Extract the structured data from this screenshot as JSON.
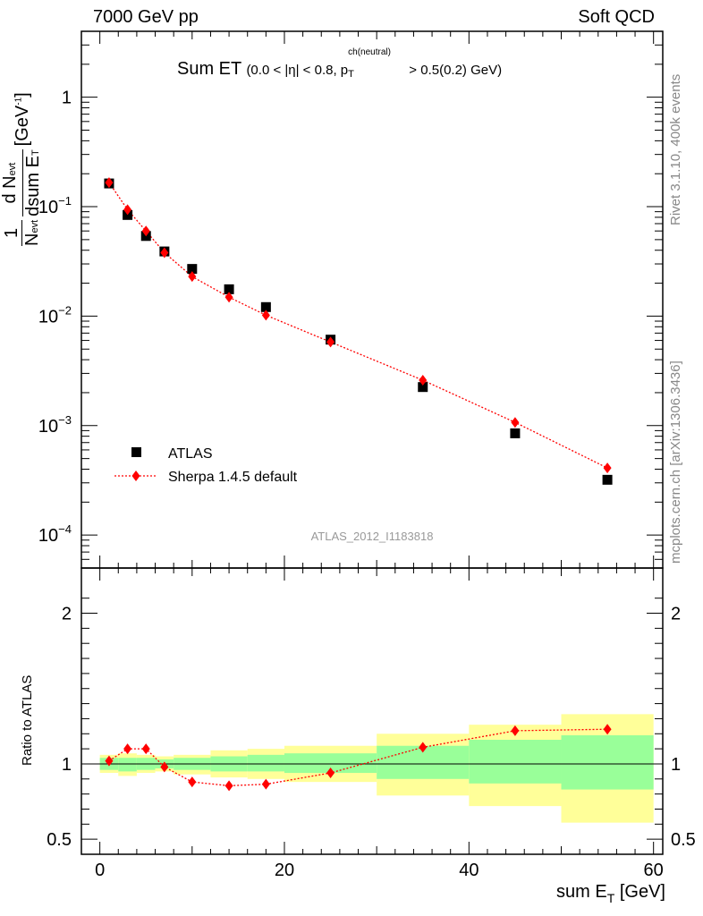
{
  "header": {
    "left": "7000 GeV pp",
    "right": "Soft QCD"
  },
  "side_labels": {
    "rivet": "Rivet 3.1.10,  400k events",
    "mcplots": "mcplots.cern.ch [arXiv:1306.3436]"
  },
  "chart_data": [
    {
      "type": "scatter",
      "title": "Sum ET",
      "title_cuts": {
        "prefix": "(0.0 < |η| < 0.8, p",
        "sup": "ch(neutral)",
        "sub": "T",
        "suffix": " > 0.5(0.2) GeV)"
      },
      "ylabel": "1/N_evt dN_evt/dsum E_T [GeV^-1]",
      "ylabel_parts": {
        "one": "1",
        "n_evt_num": "d N",
        "evt": "evt",
        "n_evt_den": "N",
        "dsum": "dsum E",
        "t": "T",
        "unit": "[GeV",
        "unit_exp": "-1",
        "unit_close": "]"
      },
      "yscale": "log",
      "ylim": [
        5e-05,
        4
      ],
      "xlim": [
        -2,
        61
      ],
      "y_tick_labels": [
        {
          "v": 1,
          "base": "1",
          "exp": ""
        },
        {
          "v": 0.1,
          "base": "10",
          "exp": "−1"
        },
        {
          "v": 0.01,
          "base": "10",
          "exp": "−2"
        },
        {
          "v": 0.001,
          "base": "10",
          "exp": "−3"
        },
        {
          "v": 0.0001,
          "base": "10",
          "exp": "−4"
        }
      ],
      "legend_position": "bottom-left",
      "watermark": "ATLAS_2012_I1183818",
      "series": [
        {
          "name": "ATLAS",
          "marker": "square",
          "color": "#000000",
          "x": [
            1,
            3,
            5,
            7,
            10,
            14,
            18,
            25,
            35,
            45,
            55
          ],
          "y": [
            0.163,
            0.084,
            0.054,
            0.039,
            0.027,
            0.0176,
            0.0121,
            0.0061,
            0.00225,
            0.00085,
            0.00032
          ]
        },
        {
          "name": "Sherpa 1.4.5 default",
          "marker": "diamond",
          "line": "dotted",
          "color": "#ff0000",
          "x": [
            1,
            3,
            5,
            7,
            10,
            14,
            18,
            25,
            35,
            45,
            55
          ],
          "y": [
            0.166,
            0.094,
            0.06,
            0.038,
            0.023,
            0.0149,
            0.0102,
            0.0058,
            0.0026,
            0.00107,
            0.00041
          ]
        }
      ]
    },
    {
      "type": "line",
      "ylabel": "Ratio to ATLAS",
      "xlabel_parts": {
        "main": "sum E",
        "sub": "T",
        "unit": " [GeV]"
      },
      "xlim": [
        -2,
        61
      ],
      "ylim": [
        0.4,
        2.3
      ],
      "x_ticks": [
        0,
        20,
        40,
        60
      ],
      "y_tick_labels": [
        {
          "v": 2,
          "label": "2"
        },
        {
          "v": 1,
          "label": "1"
        },
        {
          "v": 0.5,
          "label": "0.5"
        }
      ],
      "reference_line": 1,
      "bands": [
        {
          "x0": 0,
          "x1": 2,
          "stat_lo": 0.96,
          "stat_hi": 1.04,
          "tot_lo": 0.94,
          "tot_hi": 1.06
        },
        {
          "x0": 2,
          "x1": 4,
          "stat_lo": 0.95,
          "stat_hi": 1.04,
          "tot_lo": 0.92,
          "tot_hi": 1.07
        },
        {
          "x0": 4,
          "x1": 6,
          "stat_lo": 0.96,
          "stat_hi": 1.04,
          "tot_lo": 0.94,
          "tot_hi": 1.06
        },
        {
          "x0": 6,
          "x1": 8,
          "stat_lo": 0.97,
          "stat_hi": 1.03,
          "tot_lo": 0.95,
          "tot_hi": 1.05
        },
        {
          "x0": 8,
          "x1": 12,
          "stat_lo": 0.96,
          "stat_hi": 1.04,
          "tot_lo": 0.93,
          "tot_hi": 1.06
        },
        {
          "x0": 12,
          "x1": 16,
          "stat_lo": 0.95,
          "stat_hi": 1.05,
          "tot_lo": 0.91,
          "tot_hi": 1.09
        },
        {
          "x0": 16,
          "x1": 20,
          "stat_lo": 0.95,
          "stat_hi": 1.06,
          "tot_lo": 0.9,
          "tot_hi": 1.1
        },
        {
          "x0": 20,
          "x1": 30,
          "stat_lo": 0.94,
          "stat_hi": 1.07,
          "tot_lo": 0.88,
          "tot_hi": 1.12
        },
        {
          "x0": 30,
          "x1": 40,
          "stat_lo": 0.9,
          "stat_hi": 1.12,
          "tot_lo": 0.79,
          "tot_hi": 1.2
        },
        {
          "x0": 40,
          "x1": 50,
          "stat_lo": 0.87,
          "stat_hi": 1.16,
          "tot_lo": 0.72,
          "tot_hi": 1.26
        },
        {
          "x0": 50,
          "x1": 60,
          "stat_lo": 0.83,
          "stat_hi": 1.19,
          "tot_lo": 0.61,
          "tot_hi": 1.33
        }
      ],
      "band_colors": {
        "stat": "#99ff99",
        "total": "#ffff99"
      },
      "series": [
        {
          "name": "Sherpa 1.4.5 default",
          "color": "#ff0000",
          "x": [
            1,
            3,
            5,
            7,
            10,
            14,
            18,
            25,
            35,
            45,
            55
          ],
          "y": [
            1.02,
            1.1,
            1.1,
            0.98,
            0.88,
            0.855,
            0.865,
            0.94,
            1.11,
            1.22,
            1.23
          ]
        }
      ]
    }
  ]
}
